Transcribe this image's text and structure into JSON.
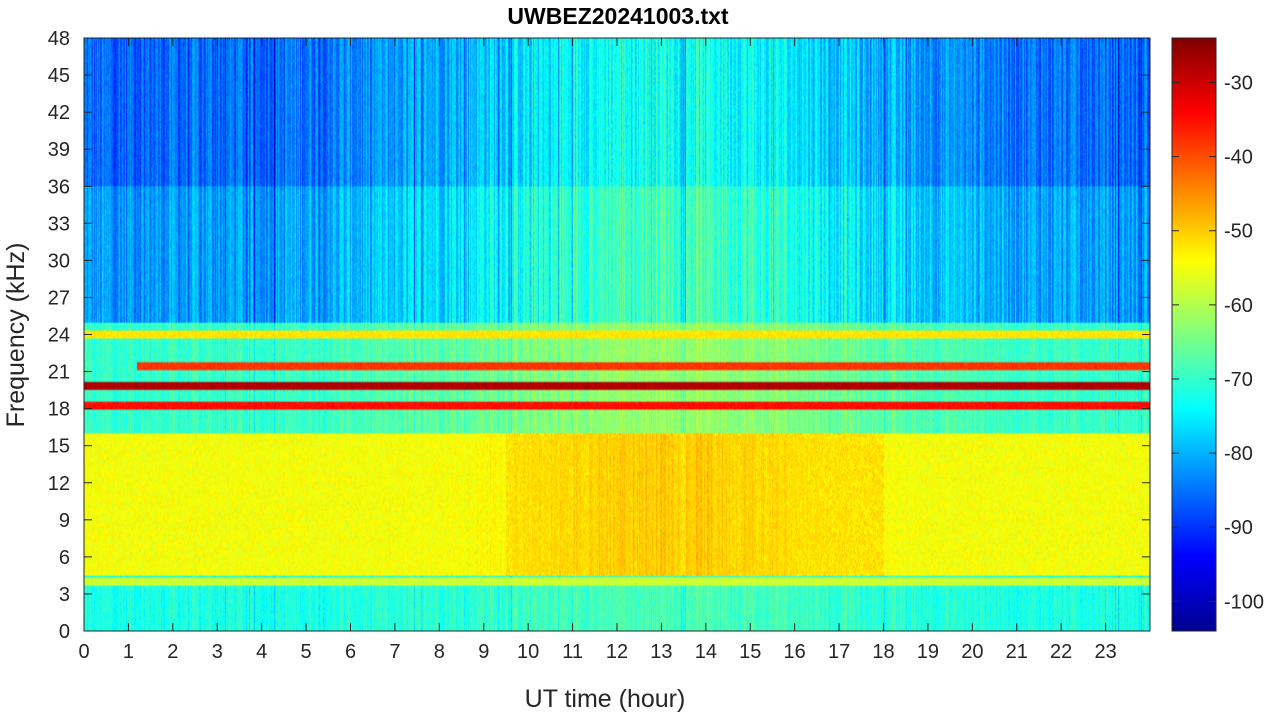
{
  "chart_data": {
    "type": "heatmap",
    "title": "UWBEZ20241003.txt",
    "xlabel": "UT time (hour)",
    "ylabel": "Frequency (kHz)",
    "xlim": [
      0,
      24
    ],
    "ylim": [
      0,
      48
    ],
    "x_ticks": [
      "0",
      "1",
      "2",
      "3",
      "4",
      "5",
      "6",
      "7",
      "8",
      "9",
      "10",
      "11",
      "12",
      "13",
      "14",
      "15",
      "16",
      "17",
      "18",
      "19",
      "20",
      "21",
      "22",
      "23"
    ],
    "y_ticks": [
      "0",
      "3",
      "6",
      "9",
      "12",
      "15",
      "18",
      "21",
      "24",
      "27",
      "30",
      "33",
      "36",
      "39",
      "42",
      "45",
      "48"
    ],
    "colorbar": {
      "colormap": "jet",
      "range": [
        -104,
        -24
      ],
      "ticks": [
        "-100",
        "-90",
        "-80",
        "-70",
        "-60",
        "-50",
        "-40",
        "-30"
      ]
    },
    "bands": [
      {
        "kind": "narrowband",
        "freq_khz": 19.8,
        "level_db": -28,
        "x_range": [
          0,
          24
        ]
      },
      {
        "kind": "narrowband",
        "freq_khz": 18.2,
        "level_db": -35,
        "x_range": [
          0,
          24
        ]
      },
      {
        "kind": "narrowband",
        "freq_khz": 21.4,
        "level_db": -38,
        "x_range": [
          1.2,
          24
        ]
      },
      {
        "kind": "narrowband",
        "freq_khz": 24.0,
        "level_db": -52,
        "x_range": [
          0,
          24
        ]
      },
      {
        "kind": "narrowband",
        "freq_khz": 4.0,
        "level_db": -58,
        "x_range": [
          0,
          24
        ]
      },
      {
        "kind": "broadband-noise",
        "freq_range_khz": [
          4.5,
          16
        ],
        "level_db": -52,
        "peak_x_range": [
          9.5,
          18
        ]
      }
    ],
    "grid": false
  }
}
